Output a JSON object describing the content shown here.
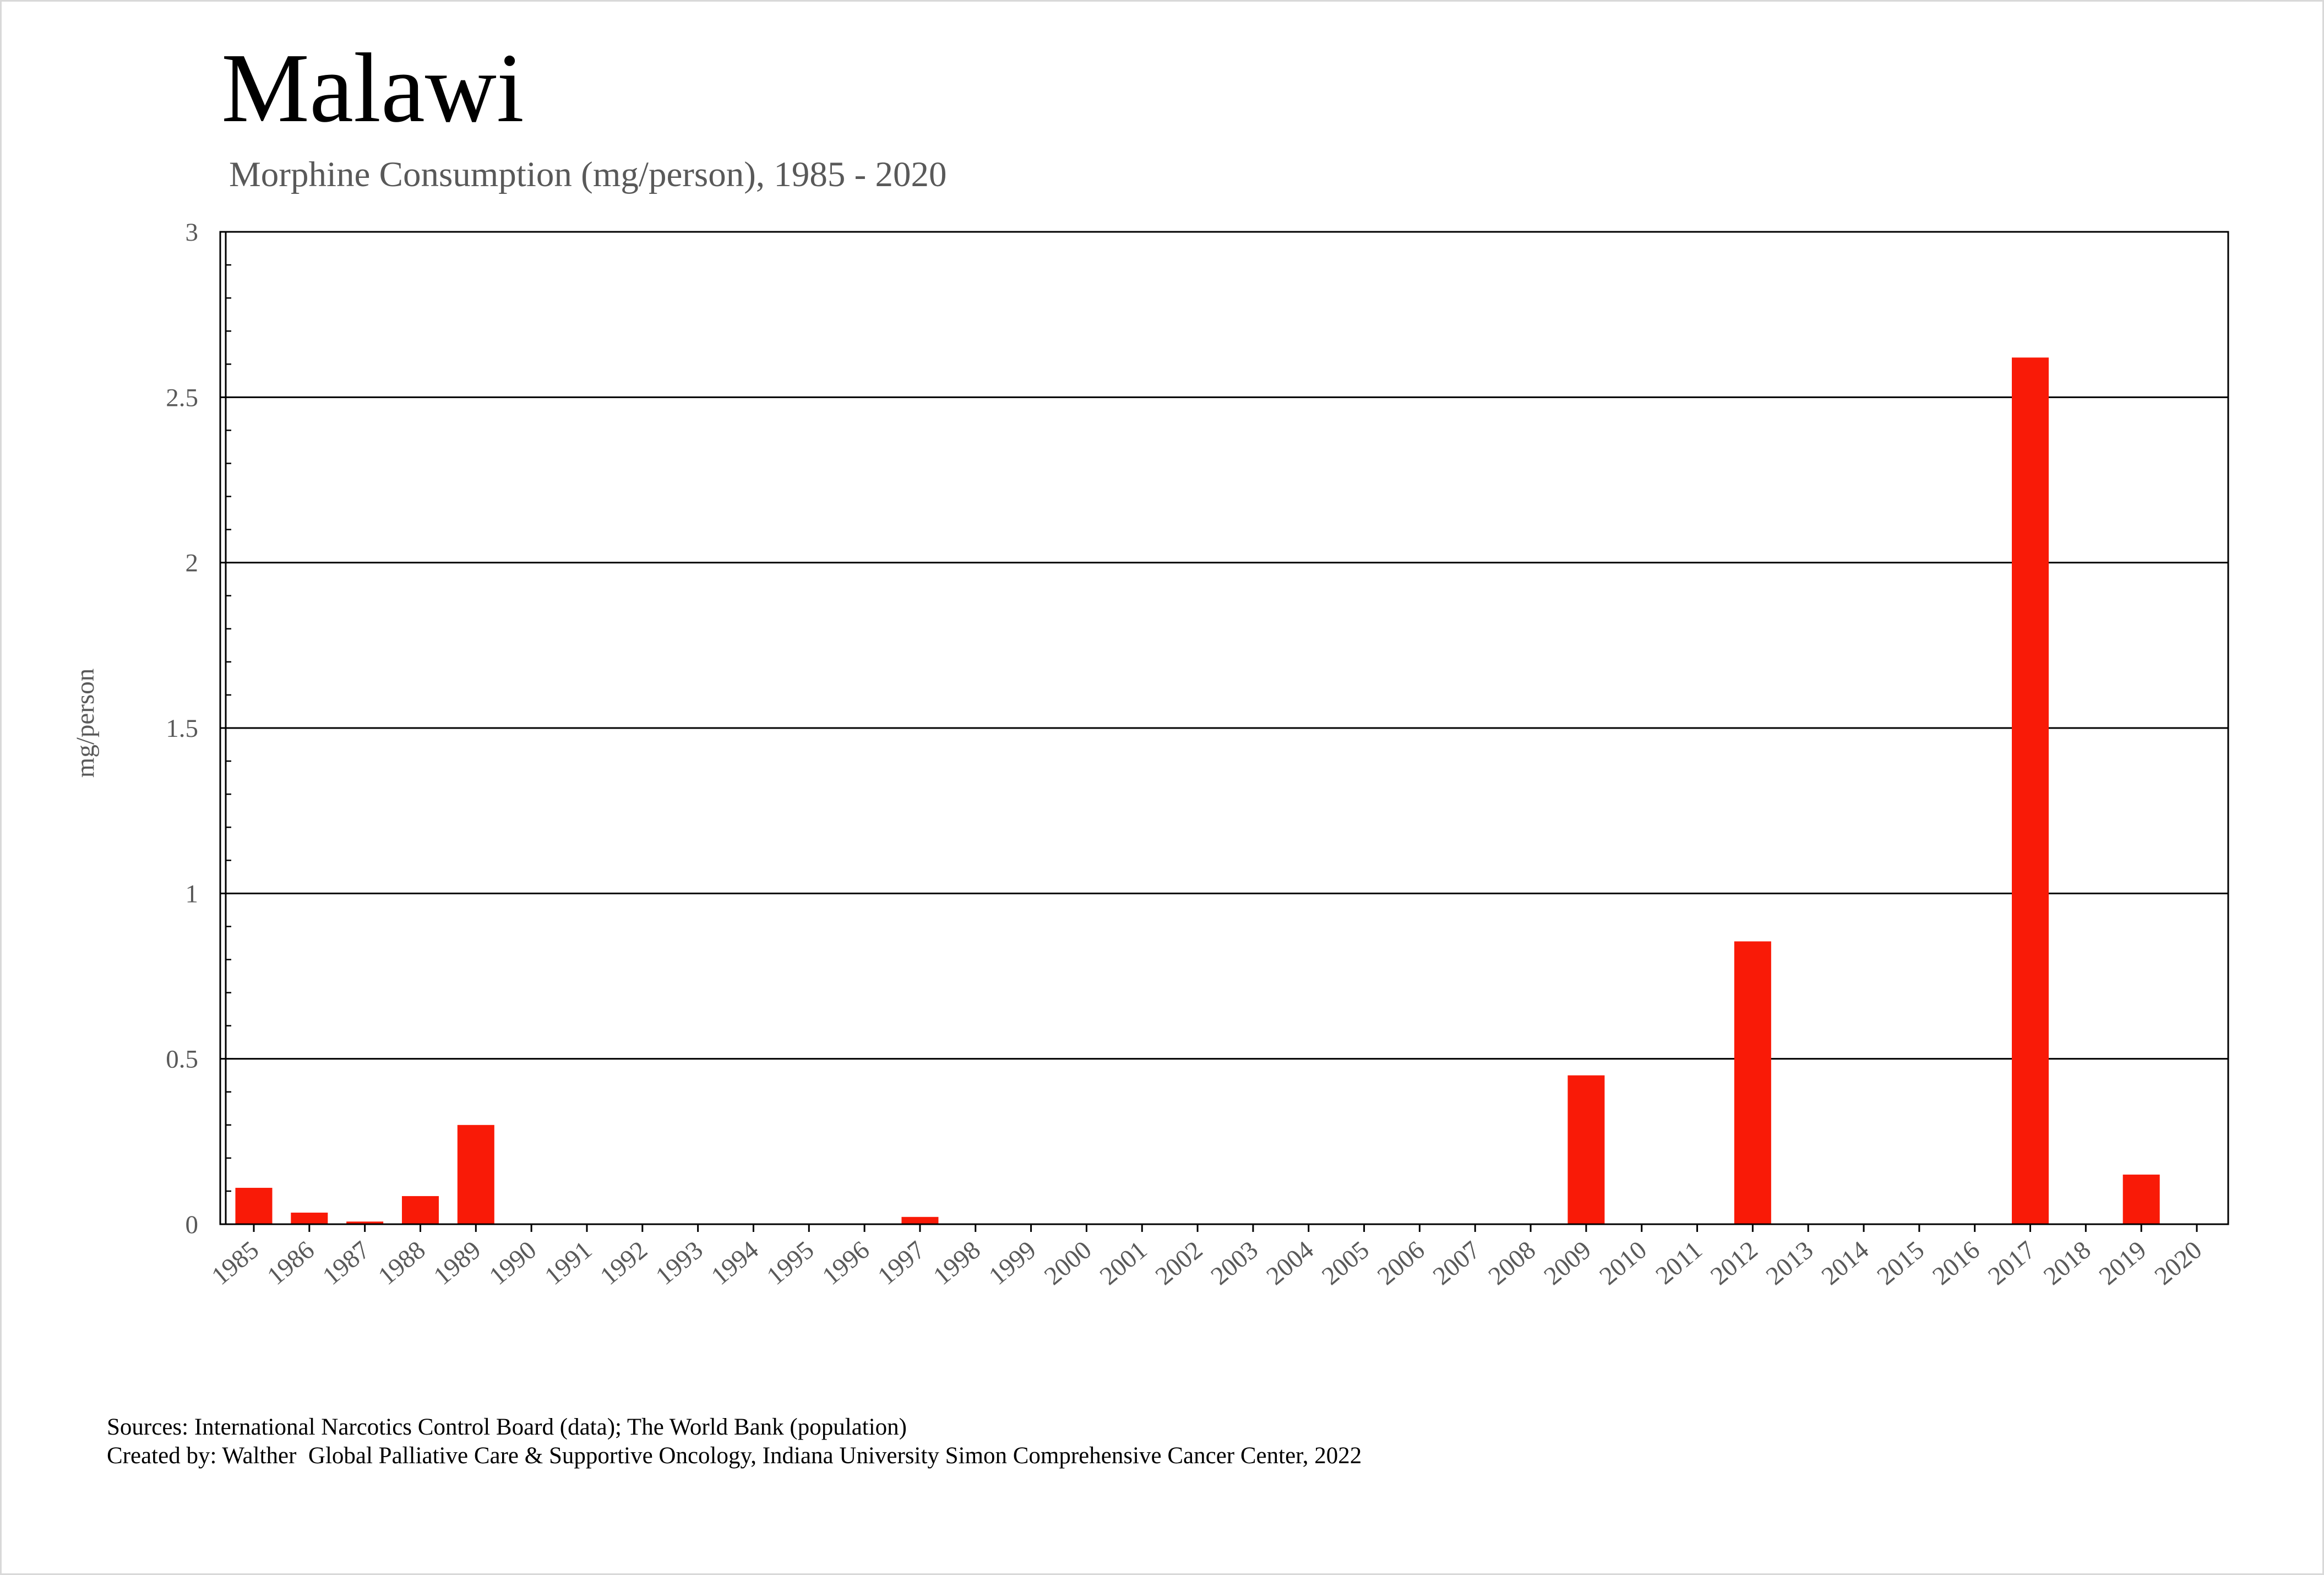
{
  "title": "Malawi",
  "subtitle": "Morphine Consumption (mg/person), 1985 - 2020",
  "footer": {
    "sources": "Sources: International Narcotics Control Board (data); The World Bank (population)",
    "created_by": "Created by: Walther  Global Palliative Care & Supportive Oncology, Indiana University Simon Comprehensive Cancer Center, 2022"
  },
  "chart_data": {
    "type": "bar",
    "title": "Malawi",
    "subtitle": "Morphine Consumption (mg/person), 1985 - 2020",
    "xlabel": "",
    "ylabel": "mg/person",
    "ylim": [
      0,
      3
    ],
    "yticks": [
      "0",
      "0.5",
      "1",
      "1.5",
      "2",
      "2.5",
      "3"
    ],
    "grid": "horizontal",
    "legend": "none",
    "bar_color": "#f91a07",
    "categories": [
      "1985",
      "1986",
      "1987",
      "1988",
      "1989",
      "1990",
      "1991",
      "1992",
      "1993",
      "1994",
      "1995",
      "1996",
      "1997",
      "1998",
      "1999",
      "2000",
      "2001",
      "2002",
      "2003",
      "2004",
      "2005",
      "2006",
      "2007",
      "2008",
      "2009",
      "2010",
      "2011",
      "2012",
      "2013",
      "2014",
      "2015",
      "2016",
      "2017",
      "2018",
      "2019",
      "2020"
    ],
    "values": [
      0.11,
      0.035,
      0.008,
      0.085,
      0.3,
      0,
      0,
      0,
      0,
      0,
      0,
      0,
      0.022,
      0,
      0,
      0,
      0,
      0,
      0,
      0,
      0,
      0,
      0,
      0,
      0.45,
      0,
      0,
      0.855,
      0,
      0,
      0,
      0,
      2.62,
      0,
      0.15,
      0
    ]
  }
}
